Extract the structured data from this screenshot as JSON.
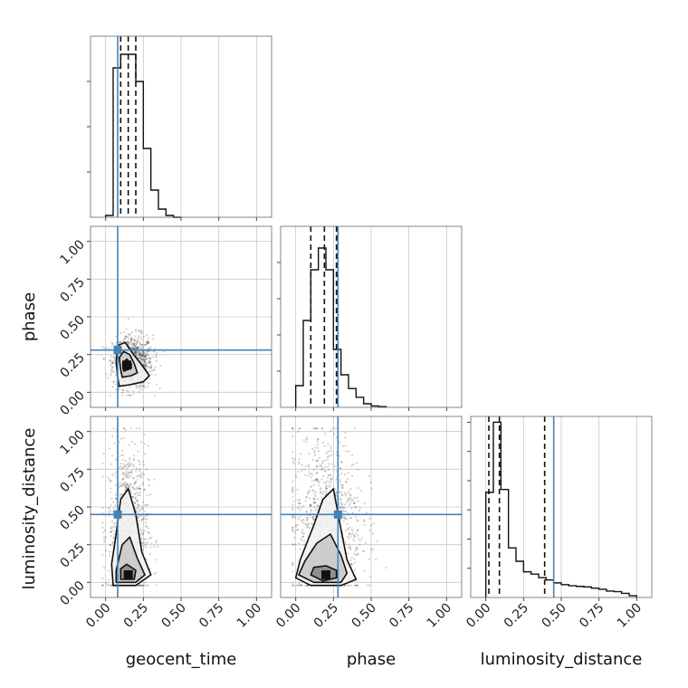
{
  "chart_data": {
    "type": "corner",
    "parameters": [
      "geocent_time",
      "phase",
      "luminosity_distance"
    ],
    "axis_range": [
      -0.1,
      1.1
    ],
    "tick_values": [
      0.0,
      0.25,
      0.5,
      0.75,
      1.0
    ],
    "tick_labels": [
      "0.00",
      "0.25",
      "0.50",
      "0.75",
      "1.00"
    ],
    "injection": {
      "geocent_time": 0.08,
      "phase": 0.28,
      "luminosity_distance": 0.45
    },
    "truth_color": "#4682b4",
    "histograms": {
      "geocent_time": {
        "bin_edges": [
          0.0,
          0.05,
          0.1,
          0.15,
          0.2,
          0.25,
          0.3,
          0.35,
          0.4,
          0.45,
          0.5
        ],
        "counts": [
          2,
          165,
          180,
          180,
          150,
          76,
          30,
          9,
          2,
          0
        ],
        "quantiles": [
          0.1,
          0.15,
          0.2
        ],
        "ylim": [
          0,
          200
        ]
      },
      "phase": {
        "bin_edges": [
          0.0,
          0.05,
          0.1,
          0.15,
          0.2,
          0.25,
          0.3,
          0.35,
          0.4,
          0.45,
          0.5,
          0.55,
          0.6
        ],
        "counts": [
          30,
          120,
          190,
          220,
          190,
          80,
          45,
          26,
          14,
          5,
          2,
          1
        ],
        "quantiles": [
          0.1,
          0.19,
          0.27
        ],
        "ylim": [
          0,
          250
        ]
      },
      "luminosity_distance": {
        "bin_edges": [
          0.0,
          0.05,
          0.1,
          0.15,
          0.2,
          0.25,
          0.3,
          0.35,
          0.4,
          0.45,
          0.5,
          0.55,
          0.6,
          0.65,
          0.7,
          0.75,
          0.8,
          0.85,
          0.9,
          0.95,
          1.0
        ],
        "counts": [
          180,
          300,
          185,
          85,
          62,
          44,
          40,
          34,
          30,
          25,
          22,
          20,
          19,
          18,
          16,
          14,
          11,
          10,
          7,
          3
        ],
        "quantiles": [
          0.02,
          0.09,
          0.39
        ],
        "ylim": [
          0,
          310
        ]
      }
    },
    "contours": [
      {
        "x": "geocent_time",
        "y": "phase",
        "peak": [
          0.14,
          0.18
        ],
        "levels": [
          {
            "points": [
              [
                0.09,
                0.04
              ],
              [
                0.16,
                0.05
              ],
              [
                0.25,
                0.07
              ],
              [
                0.29,
                0.11
              ],
              [
                0.24,
                0.18
              ],
              [
                0.17,
                0.27
              ],
              [
                0.13,
                0.33
              ],
              [
                0.08,
                0.31
              ],
              [
                0.07,
                0.2
              ],
              [
                0.08,
                0.1
              ]
            ]
          },
          {
            "points": [
              [
                0.11,
                0.1
              ],
              [
                0.17,
                0.11
              ],
              [
                0.21,
                0.13
              ],
              [
                0.19,
                0.19
              ],
              [
                0.16,
                0.25
              ],
              [
                0.12,
                0.27
              ],
              [
                0.09,
                0.23
              ],
              [
                0.1,
                0.15
              ]
            ]
          },
          {
            "points": [
              [
                0.12,
                0.14
              ],
              [
                0.17,
                0.16
              ],
              [
                0.17,
                0.19
              ],
              [
                0.14,
                0.22
              ],
              [
                0.12,
                0.2
              ]
            ]
          }
        ],
        "scatter_center": [
          0.18,
          0.2
        ],
        "scatter_spread": [
          0.12,
          0.16
        ]
      },
      {
        "x": "geocent_time",
        "y": "luminosity_distance",
        "peak": [
          0.15,
          0.05
        ],
        "levels": [
          {
            "points": [
              [
                0.05,
                -0.02
              ],
              [
                0.2,
                -0.02
              ],
              [
                0.3,
                0.05
              ],
              [
                0.24,
                0.2
              ],
              [
                0.2,
                0.45
              ],
              [
                0.15,
                0.62
              ],
              [
                0.1,
                0.55
              ],
              [
                0.07,
                0.32
              ],
              [
                0.04,
                0.12
              ]
            ]
          },
          {
            "points": [
              [
                0.07,
                0.0
              ],
              [
                0.2,
                0.0
              ],
              [
                0.26,
                0.05
              ],
              [
                0.21,
                0.16
              ],
              [
                0.16,
                0.3
              ],
              [
                0.11,
                0.25
              ],
              [
                0.07,
                0.08
              ]
            ]
          },
          {
            "points": [
              [
                0.1,
                0.02
              ],
              [
                0.19,
                0.02
              ],
              [
                0.2,
                0.08
              ],
              [
                0.14,
                0.12
              ],
              [
                0.1,
                0.09
              ]
            ]
          }
        ],
        "scatter_center": [
          0.15,
          0.35
        ],
        "scatter_spread": [
          0.12,
          0.5
        ]
      },
      {
        "x": "phase",
        "y": "luminosity_distance",
        "peak": [
          0.2,
          0.05
        ],
        "levels": [
          {
            "points": [
              [
                0.0,
                0.03
              ],
              [
                0.1,
                -0.02
              ],
              [
                0.3,
                -0.02
              ],
              [
                0.4,
                0.02
              ],
              [
                0.34,
                0.15
              ],
              [
                0.3,
                0.35
              ],
              [
                0.25,
                0.62
              ],
              [
                0.18,
                0.55
              ],
              [
                0.12,
                0.38
              ],
              [
                0.03,
                0.15
              ]
            ]
          },
          {
            "points": [
              [
                0.02,
                0.05
              ],
              [
                0.12,
                0.0
              ],
              [
                0.3,
                0.0
              ],
              [
                0.34,
                0.06
              ],
              [
                0.3,
                0.18
              ],
              [
                0.23,
                0.32
              ],
              [
                0.14,
                0.26
              ],
              [
                0.06,
                0.14
              ]
            ]
          },
          {
            "points": [
              [
                0.1,
                0.05
              ],
              [
                0.18,
                0.01
              ],
              [
                0.27,
                0.03
              ],
              [
                0.27,
                0.08
              ],
              [
                0.2,
                0.11
              ],
              [
                0.12,
                0.1
              ]
            ]
          }
        ],
        "scatter_center": [
          0.2,
          0.4
        ],
        "scatter_spread": [
          0.22,
          0.55
        ]
      }
    ],
    "grid": true
  }
}
